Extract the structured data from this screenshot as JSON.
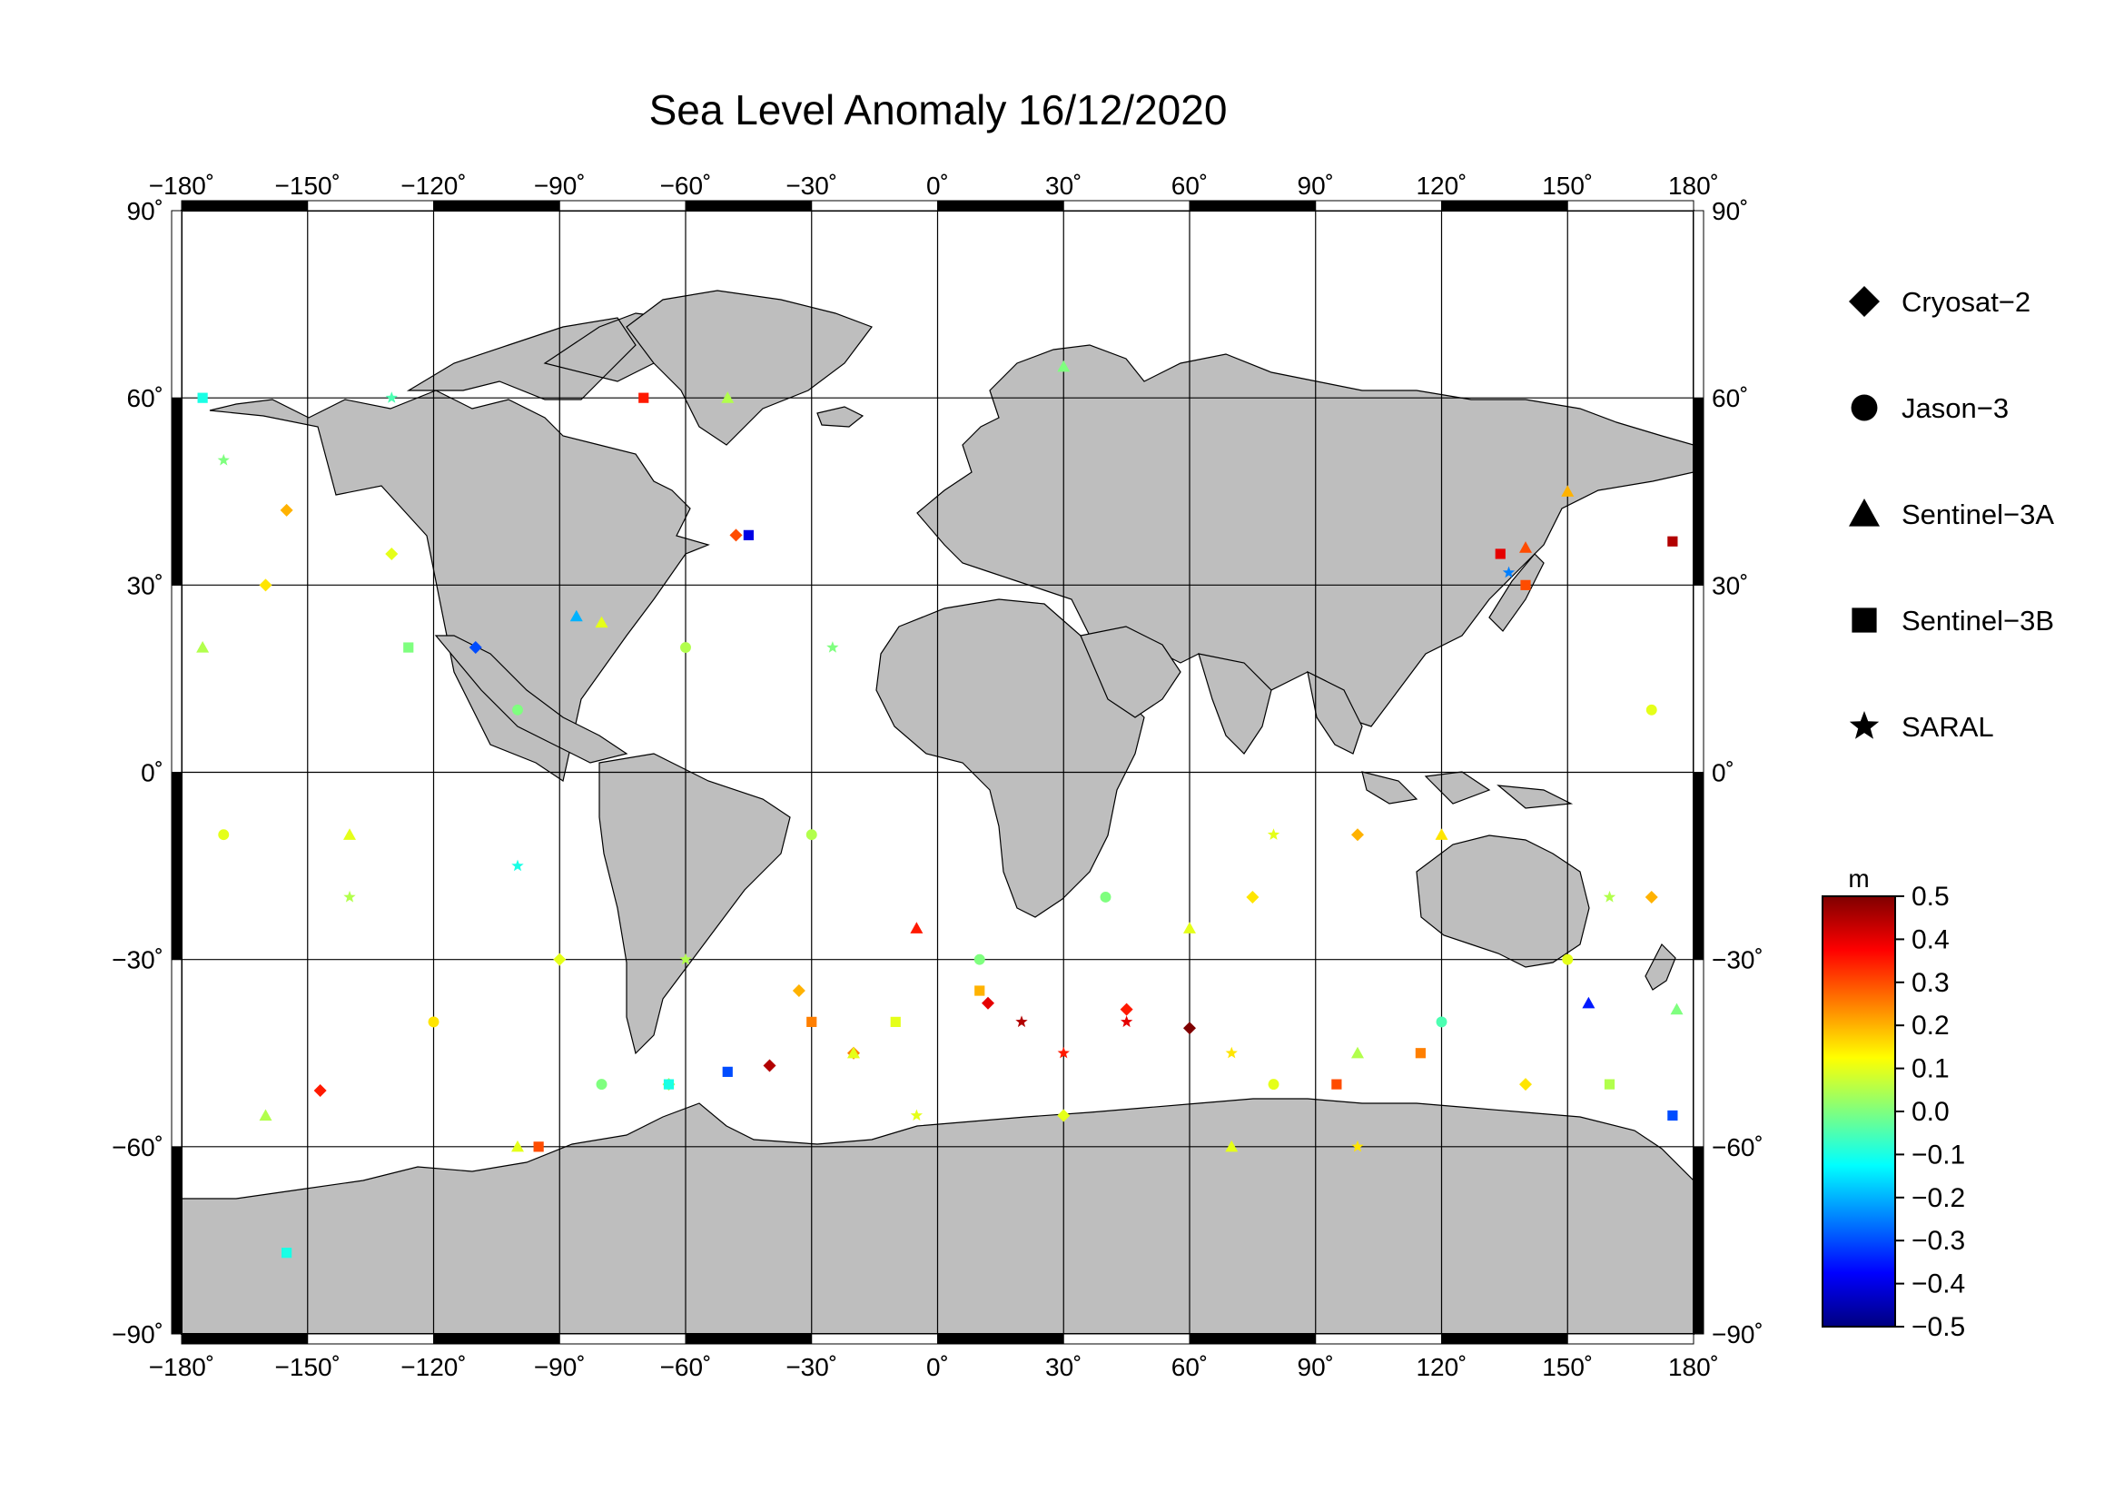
{
  "title": "Sea Level Anomaly 16/12/2020",
  "map": {
    "projection": "equirectangular",
    "lon_range": [
      -180,
      180
    ],
    "lat_range": [
      -90,
      90
    ],
    "lon_ticks": [
      -180,
      -150,
      -120,
      -90,
      -60,
      -30,
      0,
      30,
      60,
      90,
      120,
      150,
      180
    ],
    "lat_ticks": [
      -90,
      -60,
      -30,
      0,
      30,
      60,
      90
    ],
    "lon_tick_labels": [
      "−180˚",
      "−150˚",
      "−120˚",
      "−90˚",
      "−60˚",
      "−30˚",
      "0˚",
      "30˚",
      "60˚",
      "90˚",
      "120˚",
      "150˚",
      "180˚"
    ],
    "lat_tick_labels": [
      "−90˚",
      "−60˚",
      "−30˚",
      "0˚",
      "30˚",
      "60˚",
      "90˚"
    ],
    "grid": true,
    "ocean_color": "#ffffff",
    "land_color": "#bebebe",
    "frame_style": "alternating black/white"
  },
  "legend": {
    "placement": "right",
    "items": [
      {
        "label": "Cryosat−2",
        "symbol": "diamond"
      },
      {
        "label": "Jason−3",
        "symbol": "circle"
      },
      {
        "label": "Sentinel−3A",
        "symbol": "triangle"
      },
      {
        "label": "Sentinel−3B",
        "symbol": "square"
      },
      {
        "label": "SARAL",
        "symbol": "star"
      }
    ]
  },
  "colorbar": {
    "unit": "m",
    "min": -0.5,
    "max": 0.5,
    "tick_labels": [
      "0.5",
      "0.4",
      "0.3",
      "0.2",
      "0.1",
      "0.0",
      "−0.1",
      "−0.2",
      "−0.3",
      "−0.4",
      "−0.5"
    ],
    "colormap": [
      "#00007f",
      "#0000ff",
      "#007fff",
      "#00ffff",
      "#7fff7f",
      "#ffff00",
      "#ff7f00",
      "#ff0000",
      "#7f0000"
    ]
  },
  "chart_data": {
    "type": "scatter",
    "title": "Sea Level Anomaly 16/12/2020",
    "xlabel": "",
    "ylabel": "",
    "xlim": [
      -180,
      180
    ],
    "ylim": [
      -90,
      90
    ],
    "series": [
      {
        "name": "Cryosat−2",
        "symbol": "diamond",
        "points": [
          [
            -147,
            -51,
            0.35
          ],
          [
            -64,
            -50,
            0.05
          ],
          [
            -40,
            -47,
            0.45
          ],
          [
            -33,
            -35,
            0.2
          ],
          [
            12,
            -37,
            0.4
          ],
          [
            60,
            -41,
            0.5
          ],
          [
            45,
            -38,
            0.35
          ],
          [
            -155,
            42,
            0.2
          ],
          [
            -160,
            30,
            0.15
          ],
          [
            140,
            -50,
            0.15
          ],
          [
            170,
            -20,
            0.2
          ],
          [
            -110,
            20,
            -0.3
          ],
          [
            -48,
            38,
            0.3
          ],
          [
            -130,
            35,
            0.1
          ],
          [
            75,
            -20,
            0.15
          ],
          [
            100,
            -10,
            0.2
          ],
          [
            -20,
            -45,
            0.25
          ],
          [
            30,
            -55,
            0.1
          ],
          [
            -90,
            -30,
            0.1
          ]
        ]
      },
      {
        "name": "Jason−3",
        "symbol": "circle",
        "points": [
          [
            -100,
            10,
            0.0
          ],
          [
            -170,
            -10,
            0.1
          ],
          [
            40,
            -20,
            0.0
          ],
          [
            150,
            -30,
            0.1
          ],
          [
            -30,
            -10,
            0.05
          ],
          [
            80,
            -50,
            0.1
          ],
          [
            -120,
            -40,
            0.15
          ],
          [
            120,
            -40,
            -0.05
          ],
          [
            10,
            -30,
            0.0
          ],
          [
            -60,
            20,
            0.05
          ],
          [
            170,
            10,
            0.1
          ],
          [
            -80,
            -50,
            0.0
          ]
        ]
      },
      {
        "name": "Sentinel−3A",
        "symbol": "triangle",
        "points": [
          [
            -86,
            25,
            -0.2
          ],
          [
            -80,
            24,
            0.1
          ],
          [
            155,
            -37,
            -0.35
          ],
          [
            150,
            45,
            0.2
          ],
          [
            140,
            36,
            0.3
          ],
          [
            -5,
            -25,
            0.35
          ],
          [
            60,
            -25,
            0.1
          ],
          [
            -140,
            -10,
            0.1
          ],
          [
            -175,
            20,
            0.05
          ],
          [
            -20,
            -45,
            0.1
          ],
          [
            100,
            -45,
            0.05
          ],
          [
            70,
            -60,
            0.1
          ],
          [
            -100,
            -60,
            0.1
          ],
          [
            30,
            65,
            0.0
          ],
          [
            -50,
            60,
            0.05
          ],
          [
            120,
            -10,
            0.15
          ],
          [
            -160,
            -55,
            0.05
          ],
          [
            176,
            -38,
            0.0
          ]
        ]
      },
      {
        "name": "Sentinel−3B",
        "symbol": "square",
        "points": [
          [
            -70,
            60,
            0.35
          ],
          [
            -45,
            38,
            -0.4
          ],
          [
            -64,
            -50,
            -0.1
          ],
          [
            -50,
            -48,
            -0.3
          ],
          [
            175,
            37,
            0.45
          ],
          [
            134,
            35,
            0.4
          ],
          [
            140,
            30,
            0.3
          ],
          [
            -175,
            60,
            -0.1
          ],
          [
            -155,
            -77,
            -0.1
          ],
          [
            -95,
            -60,
            0.3
          ],
          [
            95,
            -50,
            0.3
          ],
          [
            115,
            -45,
            0.25
          ],
          [
            -126,
            20,
            0.0
          ],
          [
            10,
            -35,
            0.2
          ],
          [
            -10,
            -40,
            0.1
          ],
          [
            160,
            -50,
            0.05
          ],
          [
            175,
            -55,
            -0.3
          ],
          [
            -30,
            -40,
            0.25
          ]
        ]
      },
      {
        "name": "SARAL",
        "symbol": "star",
        "points": [
          [
            136,
            32,
            -0.25
          ],
          [
            -100,
            -15,
            -0.1
          ],
          [
            20,
            -40,
            0.45
          ],
          [
            45,
            -40,
            0.4
          ],
          [
            -140,
            -20,
            0.05
          ],
          [
            -60,
            -30,
            0.05
          ],
          [
            70,
            -45,
            0.15
          ],
          [
            100,
            -60,
            0.15
          ],
          [
            -170,
            50,
            0.0
          ],
          [
            160,
            -20,
            0.05
          ],
          [
            -25,
            20,
            0.0
          ],
          [
            30,
            -45,
            0.35
          ],
          [
            80,
            -10,
            0.1
          ],
          [
            -5,
            -55,
            0.1
          ],
          [
            -130,
            60,
            -0.05
          ]
        ]
      }
    ]
  }
}
